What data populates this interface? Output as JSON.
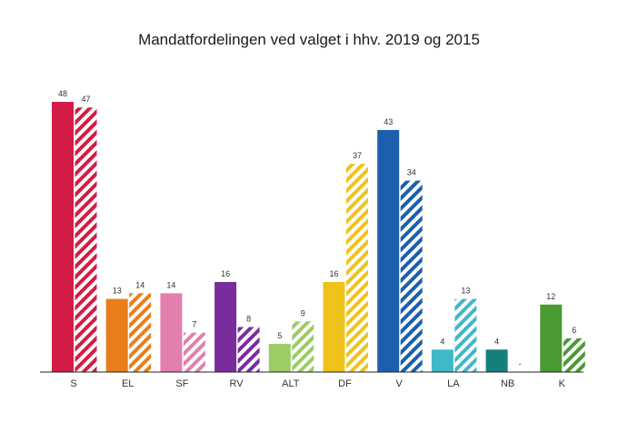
{
  "chart_data": {
    "type": "bar",
    "title": "Mandatfordelingen ved valget i hhv. 2019 og 2015",
    "xlabel": "",
    "ylabel": "",
    "ylim": [
      0,
      48
    ],
    "grid": false,
    "legend": "none",
    "categories": [
      "S",
      "EL",
      "SF",
      "RV",
      "ALT",
      "DF",
      "V",
      "LA",
      "NB",
      "K"
    ],
    "colors": [
      "#d31c45",
      "#e87e1b",
      "#e27fae",
      "#7b2c9c",
      "#9ccc65",
      "#efc31c",
      "#1b5fae",
      "#3fb8c8",
      "#157f7c",
      "#4a9a33"
    ],
    "series": [
      {
        "year": "2019",
        "style": "solid",
        "values": [
          48,
          13,
          14,
          16,
          5,
          16,
          43,
          4,
          4,
          12
        ],
        "labels": [
          "48",
          "13",
          "14",
          "16",
          "5",
          "16",
          "43",
          "4",
          "4",
          "12"
        ]
      },
      {
        "year": "2015",
        "style": "hatched",
        "values": [
          47,
          14,
          7,
          8,
          9,
          37,
          34,
          13,
          0,
          6
        ],
        "labels": [
          "47",
          "14",
          "7",
          "8",
          "9",
          "37",
          "34",
          "13",
          "-",
          "6"
        ]
      }
    ]
  }
}
